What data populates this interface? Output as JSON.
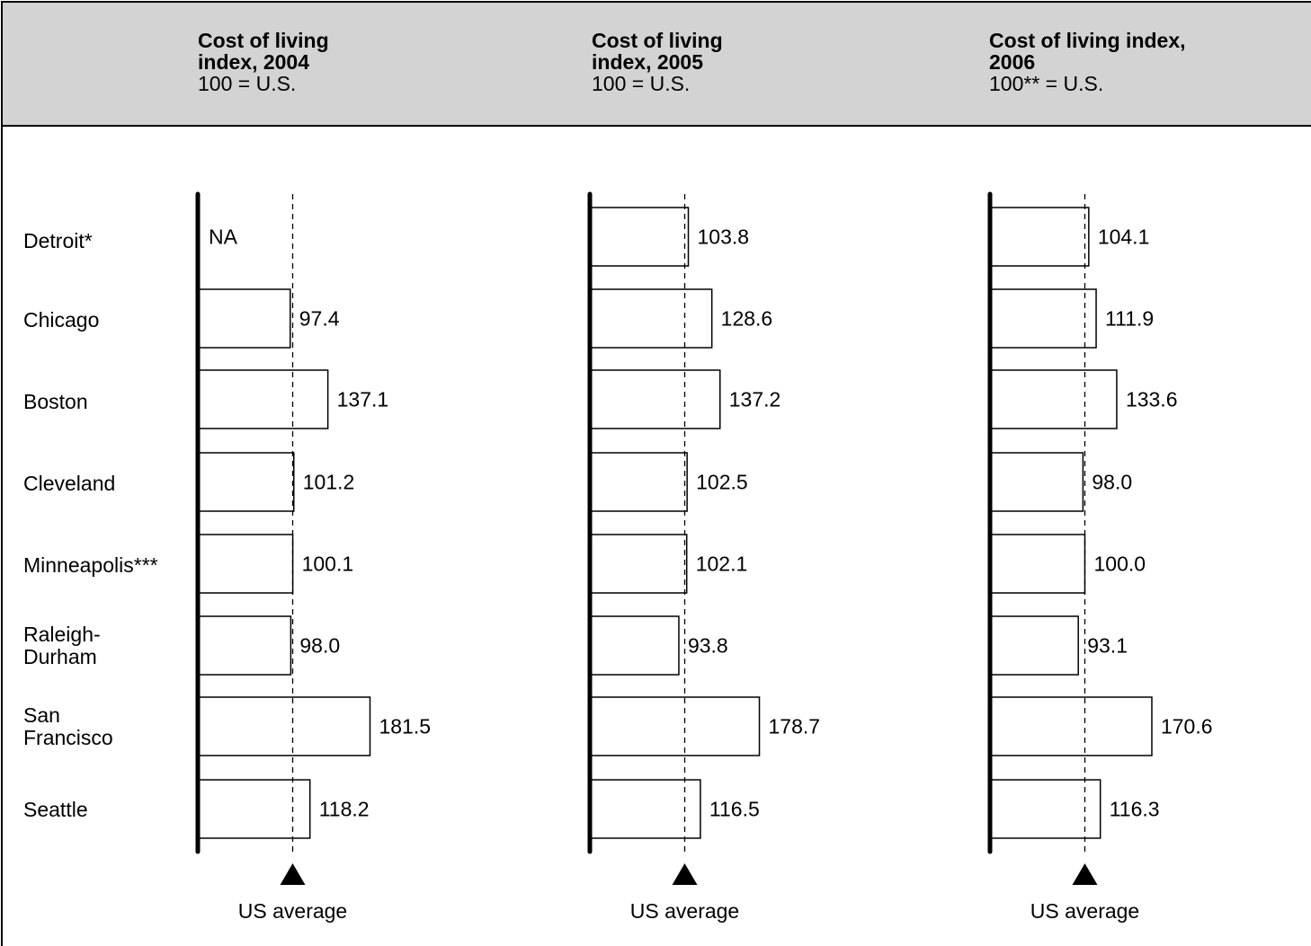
{
  "chart_data": {
    "type": "bar",
    "orientation": "horizontal",
    "categories": [
      "Detroit*",
      "Chicago",
      "Boston",
      "Cleveland",
      "Minneapolis***",
      "Raleigh-\nDurham",
      "San\nFrancisco",
      "Seattle"
    ],
    "reference_line": {
      "value": 100,
      "label": "US average"
    },
    "panels": [
      {
        "title": "Cost of living\nindex, 2004",
        "subtitle": "100 = U.S.",
        "values": [
          null,
          97.4,
          137.1,
          101.2,
          100.1,
          98.0,
          181.5,
          118.2
        ],
        "labels": [
          "NA",
          "97.4",
          "137.1",
          "101.2",
          "100.1",
          "98.0",
          "181.5",
          "118.2"
        ]
      },
      {
        "title": "Cost of living\nindex, 2005",
        "subtitle": "100 = U.S.",
        "values": [
          103.8,
          128.6,
          137.2,
          102.5,
          102.1,
          93.8,
          178.7,
          116.5
        ],
        "labels": [
          "103.8",
          "128.6",
          "137.2",
          "102.5",
          "102.1",
          "93.8",
          "178.7",
          "116.5"
        ]
      },
      {
        "title": "Cost of living index,\n2006",
        "subtitle": "100** = U.S.",
        "values": [
          104.1,
          111.9,
          133.6,
          98.0,
          100.0,
          93.1,
          170.6,
          116.3
        ],
        "labels": [
          "104.1",
          "111.9",
          "133.6",
          "98.0",
          "100.0",
          "93.1",
          "170.6",
          "116.3"
        ]
      }
    ],
    "grid": false,
    "legend": "none"
  }
}
